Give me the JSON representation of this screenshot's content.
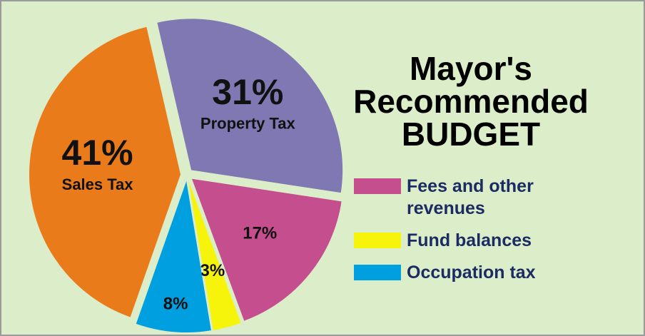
{
  "chart_data": {
    "type": "pie",
    "title": [
      "Mayor's",
      "Recommended",
      "BUDGET"
    ],
    "categories": [
      "Property Tax",
      "Fees and other revenues",
      "Fund balances",
      "Occupation tax",
      "Sales Tax"
    ],
    "values": [
      31,
      17,
      3,
      8,
      41
    ],
    "value_labels": [
      "31%",
      "17%",
      "3%",
      "8%",
      "41%"
    ],
    "colors": [
      "#7f78b2",
      "#c54e8f",
      "#f7f40c",
      "#009fe0",
      "#ea7b1b"
    ],
    "legend": "right"
  }
}
